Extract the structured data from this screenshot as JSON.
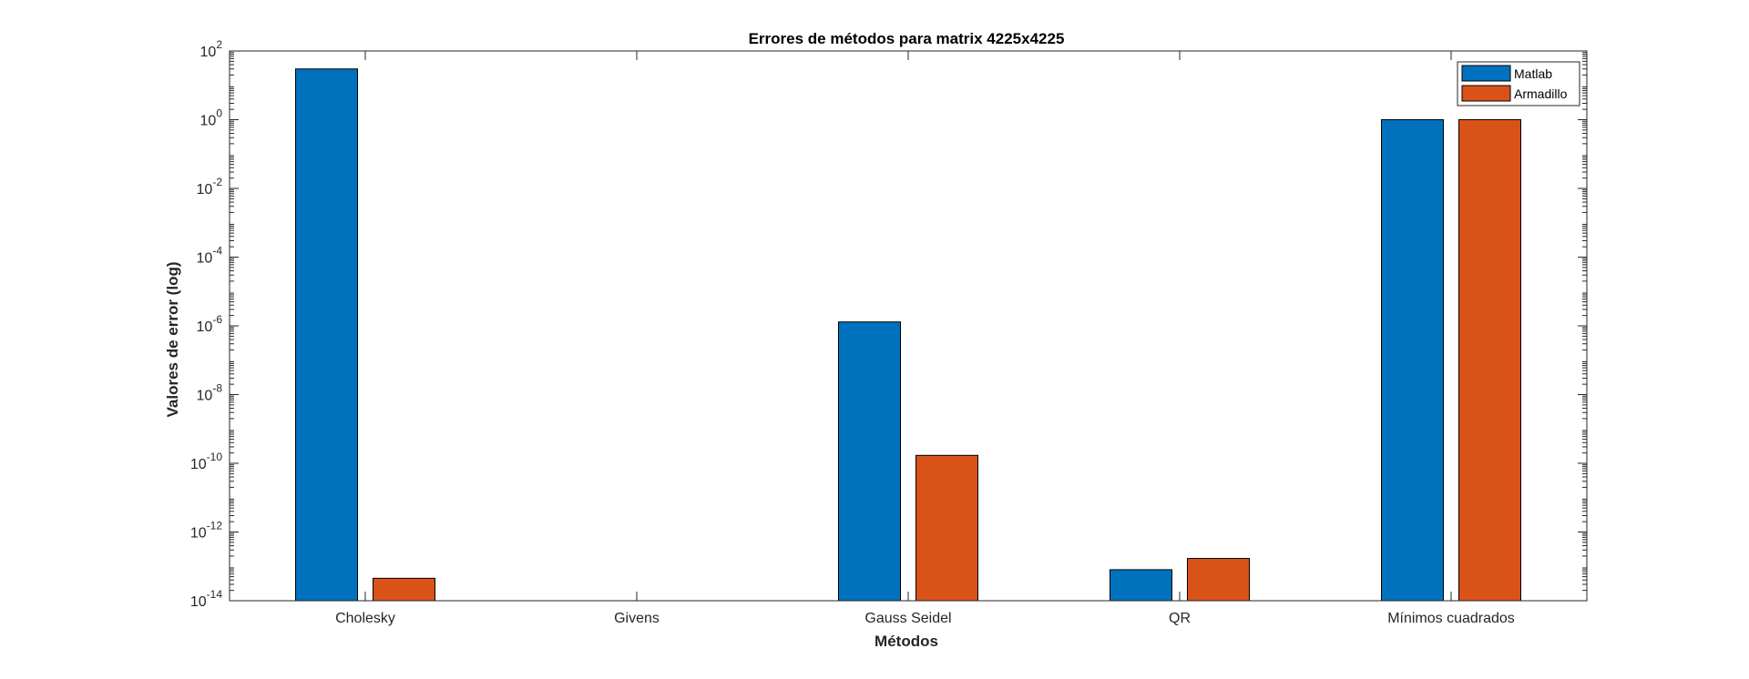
{
  "chart_data": {
    "type": "bar",
    "title": "Errores de métodos para matrix 4225x4225",
    "xlabel": "Métodos",
    "ylabel": "Valores de error (log)",
    "yscale": "log",
    "ylim": [
      1e-14,
      100
    ],
    "categories": [
      "Cholesky",
      "Givens",
      "Gauss Seidel",
      "QR",
      "Mínimos cuadrados"
    ],
    "series": [
      {
        "name": "Matlab",
        "color": "#0072BD",
        "values": [
          30,
          null,
          1.3e-06,
          8e-14,
          1
        ]
      },
      {
        "name": "Armadillo",
        "color": "#D95319",
        "values": [
          4.5e-14,
          null,
          1.7e-10,
          1.7e-13,
          1
        ]
      }
    ],
    "y_ticks": [
      {
        "exp": -14,
        "base": "10",
        "sup": "-14"
      },
      {
        "exp": -12,
        "base": "10",
        "sup": "-12"
      },
      {
        "exp": -10,
        "base": "10",
        "sup": "-10"
      },
      {
        "exp": -8,
        "base": "10",
        "sup": "-8"
      },
      {
        "exp": -6,
        "base": "10",
        "sup": "-6"
      },
      {
        "exp": -4,
        "base": "10",
        "sup": "-4"
      },
      {
        "exp": -2,
        "base": "10",
        "sup": "-2"
      },
      {
        "exp": 0,
        "base": "10",
        "sup": "0"
      },
      {
        "exp": 2,
        "base": "10",
        "sup": "2"
      }
    ],
    "legend_position": "top-right",
    "grid": false
  }
}
